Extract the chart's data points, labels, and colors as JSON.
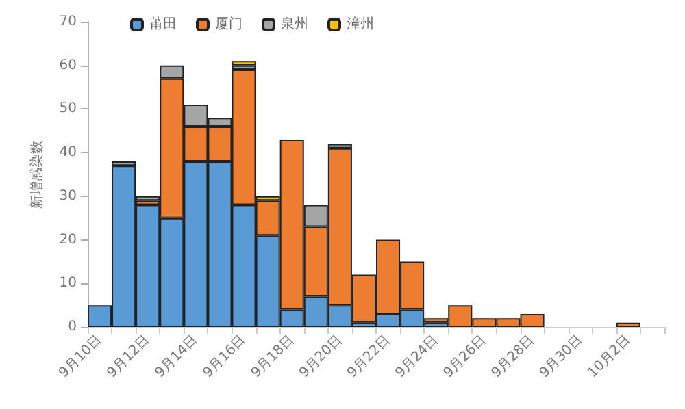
{
  "chart_data": {
    "type": "bar",
    "stacked": true,
    "ylabel": "新增感染数",
    "categories": [
      "9月10日",
      null,
      "9月12日",
      null,
      "9月14日",
      null,
      "9月16日",
      null,
      "9月18日",
      null,
      "9月20日",
      null,
      "9月22日",
      null,
      "9月24日",
      null,
      "9月26日",
      null,
      "9月28日",
      null,
      "9月30日",
      null,
      "10月2日",
      null
    ],
    "series": [
      {
        "name": "莆田",
        "color": "#5b9bd5",
        "values": [
          5,
          37,
          28,
          25,
          38,
          38,
          28,
          21,
          4,
          7,
          5,
          1,
          3,
          4,
          1,
          0,
          0,
          0,
          0,
          0,
          0,
          0,
          0,
          0
        ]
      },
      {
        "name": "厦门",
        "color": "#ed7d31",
        "values": [
          0,
          0,
          1,
          32,
          8,
          8,
          31,
          8,
          39,
          16,
          36,
          11,
          17,
          11,
          1,
          5,
          2,
          2,
          3,
          0,
          0,
          0,
          1,
          0
        ]
      },
      {
        "name": "泉州",
        "color": "#a5a5a5",
        "values": [
          0,
          1,
          1,
          3,
          5,
          2,
          1,
          0,
          0,
          5,
          1,
          0,
          0,
          0,
          0,
          0,
          0,
          0,
          0,
          0,
          0,
          0,
          0,
          0
        ]
      },
      {
        "name": "漳州",
        "color": "#ffc000",
        "values": [
          0,
          0,
          0,
          0,
          0,
          0,
          1,
          1,
          0,
          0,
          0,
          0,
          0,
          0,
          0,
          0,
          0,
          0,
          0,
          0,
          0,
          0,
          0,
          0
        ]
      }
    ],
    "ylim": [
      0,
      70
    ],
    "yticks": [
      0,
      10,
      20,
      30,
      40,
      50,
      60,
      70
    ],
    "grid": false,
    "legend": "top"
  }
}
